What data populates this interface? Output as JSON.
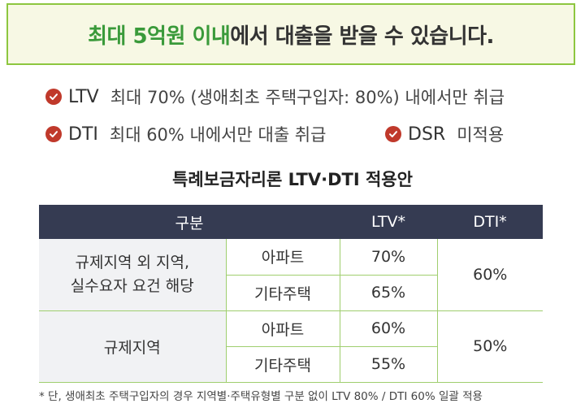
{
  "banner": {
    "part1": "최대 5억원 이내",
    "part2": "에서 대출을 받을 수 있습니다."
  },
  "bullets": [
    {
      "key": "LTV",
      "text": "최대 70% (생애최초 주택구입자: 80%) 내에서만 취급"
    },
    {
      "key": "DTI",
      "text": "최대 60% 내에서만 대출 취급"
    },
    {
      "key": "DSR",
      "text": "미적용"
    }
  ],
  "table": {
    "title": "특례보금자리론 LTV·DTI 적용안",
    "headers": [
      "구분",
      "LTV*",
      "DTI*"
    ],
    "groups": [
      {
        "category": [
          "규제지역 외 지역,",
          "실수요자 요건 해당"
        ],
        "rows": [
          {
            "type": "아파트",
            "ltv": "70%"
          },
          {
            "type": "기타주택",
            "ltv": "65%"
          }
        ],
        "dti": "60%"
      },
      {
        "category": [
          "규제지역"
        ],
        "rows": [
          {
            "type": "아파트",
            "ltv": "60%"
          },
          {
            "type": "기타주택",
            "ltv": "55%"
          }
        ],
        "dti": "50%"
      }
    ]
  },
  "footnote": "* 단, 생애최초 주택구입자의 경우 지역별·주택유형별 구분 없이 LTV 80% / DTI 60% 일괄 적용",
  "colors": {
    "accent_green": "#3a9a3a",
    "border_green": "#8dc63f",
    "header_navy": "#353b52",
    "check_red": "#c0392b"
  }
}
